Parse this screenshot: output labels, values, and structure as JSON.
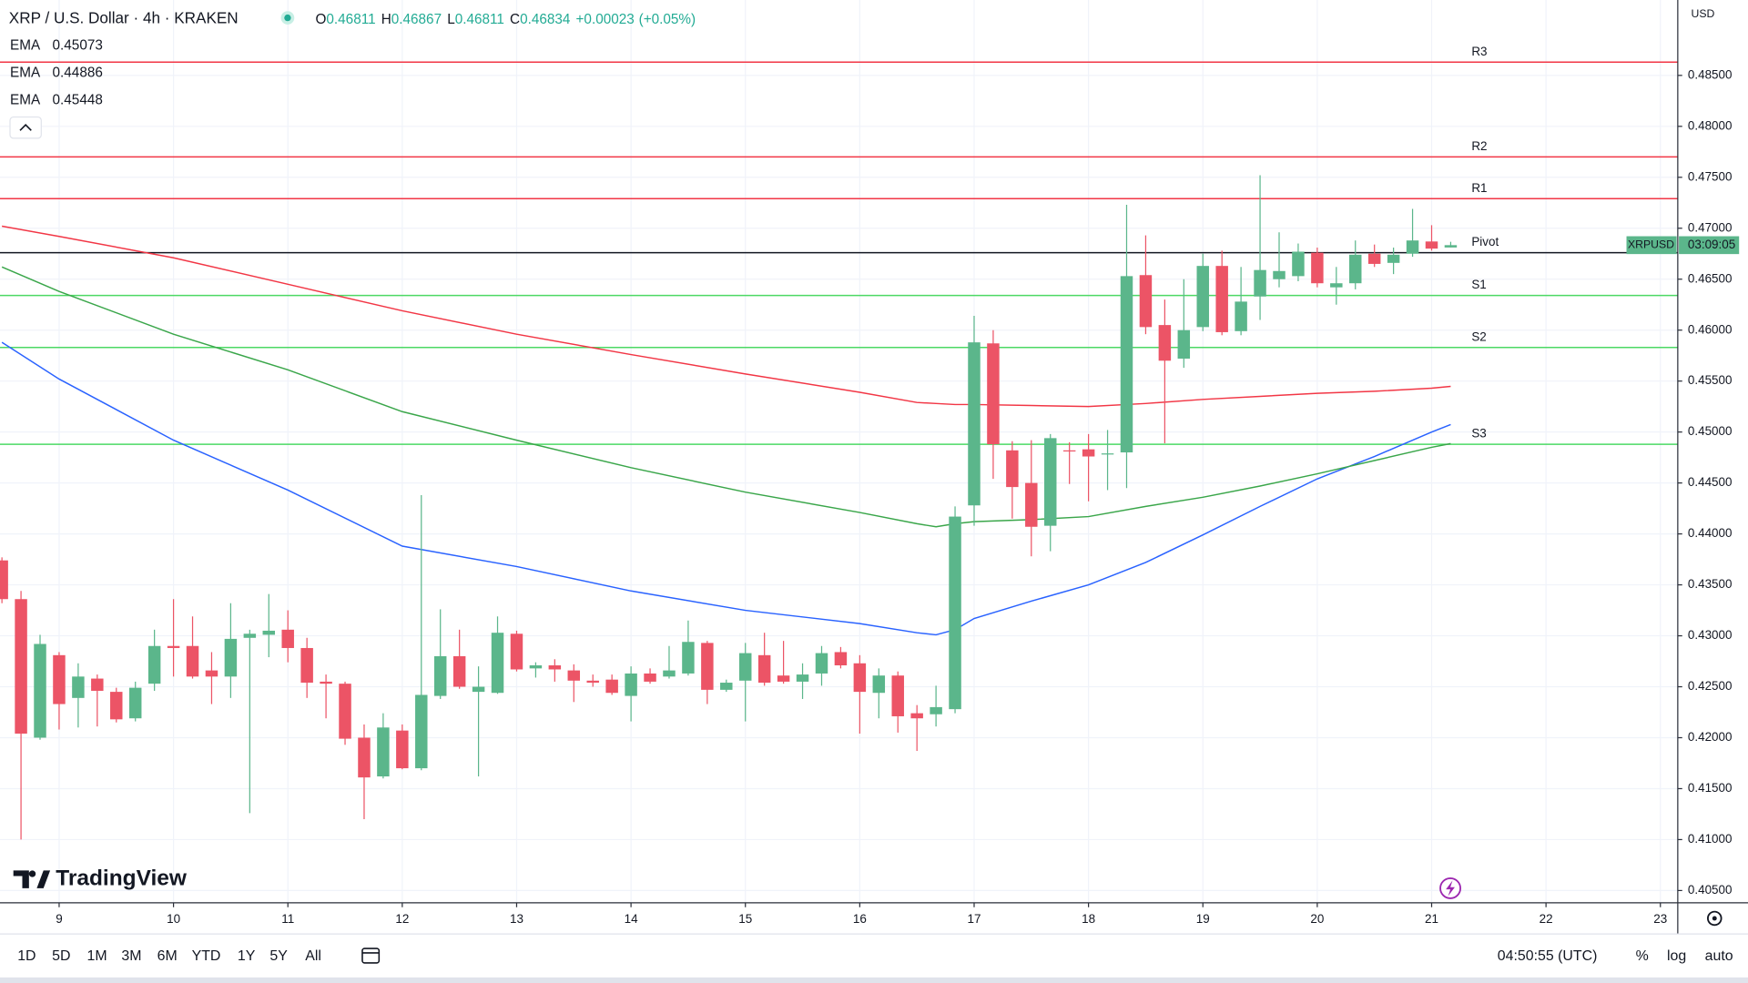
{
  "chart_data": {
    "type": "candlestick",
    "title": "XRP / U.S. Dollar · 4h · KRAKEN",
    "ohlc_labels": [
      "O",
      "H",
      "L",
      "C"
    ],
    "change": "+0.00023",
    "change_pct": "(+0.05%)",
    "currency": "USD",
    "symbol_tag": "XRPUSD",
    "countdown": "03:09:05",
    "up_color": "#5bb68b",
    "down_color": "#ec5466",
    "x": [
      8.5,
      8.6667,
      8.8333,
      9,
      9.1667,
      9.3333,
      9.5,
      9.6667,
      9.8333,
      10,
      10.1667,
      10.3333,
      10.5,
      10.6667,
      10.8333,
      11,
      11.1667,
      11.3333,
      11.5,
      11.6667,
      11.8333,
      12,
      12.1667,
      12.3333,
      12.5,
      12.6667,
      12.8333,
      13,
      13.1667,
      13.3333,
      13.5,
      13.6667,
      13.8333,
      14,
      14.1667,
      14.3333,
      14.5,
      14.6667,
      14.8333,
      15,
      15.1667,
      15.3333,
      15.5,
      15.6667,
      15.8333,
      16,
      16.1667,
      16.3333,
      16.5,
      16.6667,
      16.8333,
      17,
      17.1667,
      17.3333,
      17.5,
      17.6667,
      17.8333,
      18,
      18.1667,
      18.3333,
      18.5,
      18.6667,
      18.8333,
      19,
      19.1667,
      19.3333,
      19.5,
      19.6667,
      19.8333,
      20,
      20.1667,
      20.3333,
      20.5,
      20.6667,
      20.8333,
      21,
      21.1667
    ],
    "open": [
      0.4374,
      0.4336,
      0.42,
      0.4281,
      0.4239,
      0.4258,
      0.4245,
      0.4219,
      0.4253,
      0.429,
      0.429,
      0.4266,
      0.426,
      0.4298,
      0.4301,
      0.4306,
      0.4288,
      0.4255,
      0.4253,
      0.42,
      0.4162,
      0.4207,
      0.417,
      0.4241,
      0.428,
      0.4245,
      0.4244,
      0.4302,
      0.4268,
      0.4271,
      0.4266,
      0.4256,
      0.4257,
      0.4241,
      0.4263,
      0.426,
      0.4263,
      0.4293,
      0.4247,
      0.4256,
      0.4281,
      0.4261,
      0.4255,
      0.4263,
      0.4284,
      0.4273,
      0.4244,
      0.4261,
      0.4224,
      0.4223,
      0.4228,
      0.4428,
      0.4587,
      0.4482,
      0.445,
      0.4408,
      0.4482,
      0.4483,
      0.4478,
      0.448,
      0.4654,
      0.4605,
      0.4572,
      0.4603,
      0.4663,
      0.4599,
      0.4633,
      0.465,
      0.4653,
      0.4676,
      0.4642,
      0.4646,
      0.4675,
      0.4666,
      0.4675,
      0.4687,
      0.46811
    ],
    "high": [
      0.4377,
      0.4344,
      0.4301,
      0.4284,
      0.4273,
      0.4262,
      0.4249,
      0.4255,
      0.4306,
      0.4336,
      0.4319,
      0.4284,
      0.4332,
      0.4306,
      0.4341,
      0.4325,
      0.4298,
      0.4262,
      0.4255,
      0.4213,
      0.4224,
      0.4213,
      0.4438,
      0.4326,
      0.4306,
      0.427,
      0.4319,
      0.4305,
      0.4274,
      0.4277,
      0.4272,
      0.4262,
      0.4262,
      0.427,
      0.4268,
      0.429,
      0.4315,
      0.4295,
      0.4257,
      0.4293,
      0.4303,
      0.4295,
      0.4273,
      0.429,
      0.4289,
      0.4281,
      0.4268,
      0.4265,
      0.4232,
      0.4251,
      0.4427,
      0.4614,
      0.46,
      0.4491,
      0.4492,
      0.4498,
      0.449,
      0.4498,
      0.4502,
      0.4723,
      0.4693,
      0.463,
      0.465,
      0.4675,
      0.4678,
      0.4662,
      0.4752,
      0.4696,
      0.4685,
      0.4681,
      0.4662,
      0.4688,
      0.4684,
      0.4681,
      0.4719,
      0.4703,
      0.46867
    ],
    "low": [
      0.4332,
      0.41,
      0.4198,
      0.4208,
      0.421,
      0.4211,
      0.4215,
      0.4216,
      0.4246,
      0.426,
      0.4258,
      0.4233,
      0.4239,
      0.4126,
      0.4279,
      0.4274,
      0.4239,
      0.4219,
      0.4193,
      0.412,
      0.416,
      0.4169,
      0.4168,
      0.4238,
      0.4248,
      0.4162,
      0.4243,
      0.4265,
      0.4259,
      0.4255,
      0.4235,
      0.425,
      0.4242,
      0.4216,
      0.4253,
      0.4258,
      0.4261,
      0.4233,
      0.4245,
      0.4216,
      0.4251,
      0.4253,
      0.4238,
      0.4251,
      0.4268,
      0.4204,
      0.4219,
      0.4205,
      0.4187,
      0.4211,
      0.4224,
      0.4408,
      0.4454,
      0.4415,
      0.4378,
      0.4383,
      0.4449,
      0.4432,
      0.4443,
      0.4445,
      0.4596,
      0.4489,
      0.4563,
      0.4599,
      0.4595,
      0.4595,
      0.461,
      0.4642,
      0.4648,
      0.4642,
      0.4625,
      0.464,
      0.4662,
      0.4655,
      0.4672,
      0.4678,
      0.46811
    ],
    "close": [
      0.4336,
      0.4204,
      0.4292,
      0.4233,
      0.426,
      0.4246,
      0.4218,
      0.4249,
      0.429,
      0.4288,
      0.426,
      0.426,
      0.4297,
      0.4302,
      0.4305,
      0.4288,
      0.4254,
      0.4253,
      0.4199,
      0.4161,
      0.421,
      0.417,
      0.4242,
      0.428,
      0.425,
      0.425,
      0.4303,
      0.4267,
      0.4271,
      0.4267,
      0.4256,
      0.4254,
      0.4244,
      0.4263,
      0.4255,
      0.4266,
      0.4294,
      0.4247,
      0.4254,
      0.4283,
      0.4254,
      0.4255,
      0.4262,
      0.4283,
      0.4271,
      0.4245,
      0.4261,
      0.4221,
      0.4219,
      0.423,
      0.4417,
      0.4588,
      0.4488,
      0.4446,
      0.4407,
      0.4494,
      0.4481,
      0.4476,
      0.4479,
      0.4653,
      0.4603,
      0.457,
      0.46,
      0.4663,
      0.4598,
      0.4628,
      0.4659,
      0.4658,
      0.4677,
      0.4646,
      0.4646,
      0.4674,
      0.4665,
      0.4674,
      0.4688,
      0.468,
      0.46834
    ],
    "series": [
      {
        "name": "EMA",
        "color": "#2962ff",
        "x": [
          8.5,
          9,
          10,
          11,
          12,
          13,
          14,
          15,
          16,
          16.5,
          16.6667,
          16.8333,
          17,
          17.5,
          18,
          18.5,
          19,
          19.5,
          20,
          20.5,
          21,
          21.1667
        ],
        "values": [
          0.4588,
          0.4552,
          0.4492,
          0.4443,
          0.4388,
          0.4368,
          0.4344,
          0.4325,
          0.4312,
          0.4303,
          0.4301,
          0.4306,
          0.4317,
          0.4334,
          0.435,
          0.4372,
          0.4399,
          0.4427,
          0.4454,
          0.4476,
          0.45,
          0.45073
        ]
      },
      {
        "name": "EMA",
        "color": "#3aa64a",
        "x": [
          8.5,
          9,
          10,
          11,
          12,
          13,
          14,
          15,
          16,
          16.5,
          16.6667,
          16.8333,
          17,
          17.5,
          18,
          18.5,
          19,
          19.5,
          20,
          20.5,
          21,
          21.1667
        ],
        "values": [
          0.4662,
          0.4638,
          0.4596,
          0.4561,
          0.452,
          0.4492,
          0.4465,
          0.4441,
          0.4421,
          0.441,
          0.4407,
          0.441,
          0.4412,
          0.4414,
          0.4417,
          0.4427,
          0.4436,
          0.4447,
          0.4459,
          0.4472,
          0.4485,
          0.44886
        ]
      },
      {
        "name": "EMA",
        "color": "#f23645",
        "x": [
          8.5,
          9,
          10,
          11,
          12,
          13,
          14,
          15,
          16,
          16.5,
          16.6667,
          16.8333,
          17,
          17.5,
          18,
          18.5,
          19,
          19.5,
          20,
          20.5,
          21,
          21.1667
        ],
        "values": [
          0.4702,
          0.4692,
          0.4671,
          0.4645,
          0.4619,
          0.4596,
          0.4576,
          0.4557,
          0.4539,
          0.4529,
          0.4528,
          0.4527,
          0.4527,
          0.4526,
          0.4525,
          0.4528,
          0.4532,
          0.4535,
          0.4538,
          0.454,
          0.4543,
          0.45448
        ]
      }
    ],
    "levels": [
      {
        "name": "R3",
        "value": 0.4863,
        "color": "#f23645"
      },
      {
        "name": "R2",
        "value": 0.477,
        "color": "#f23645"
      },
      {
        "name": "R1",
        "value": 0.4729,
        "color": "#f23645"
      },
      {
        "name": "Pivot",
        "value": 0.4676,
        "color": "#131722"
      },
      {
        "name": "S1",
        "value": 0.4634,
        "color": "#4cd964"
      },
      {
        "name": "S2",
        "value": 0.4583,
        "color": "#4cd964"
      },
      {
        "name": "S3",
        "value": 0.4488,
        "color": "#4cd964"
      }
    ],
    "xlim": [
      8.483,
      23.152
    ],
    "xticks": [
      9,
      10,
      11,
      12,
      13,
      14,
      15,
      16,
      17,
      18,
      19,
      20,
      21,
      22,
      23
    ],
    "ylim": [
      0.4038,
      0.4924
    ],
    "yticks": [
      {
        "value": 0.405,
        "label": "0.40500"
      },
      {
        "value": 0.41,
        "label": "0.41000"
      },
      {
        "value": 0.415,
        "label": "0.41500"
      },
      {
        "value": 0.42,
        "label": "0.42000"
      },
      {
        "value": 0.425,
        "label": "0.42500"
      },
      {
        "value": 0.43,
        "label": "0.43000"
      },
      {
        "value": 0.435,
        "label": "0.43500"
      },
      {
        "value": 0.44,
        "label": "0.44000"
      },
      {
        "value": 0.445,
        "label": "0.44500"
      },
      {
        "value": 0.45,
        "label": "0.45000"
      },
      {
        "value": 0.455,
        "label": "0.45500"
      },
      {
        "value": 0.46,
        "label": "0.46000"
      },
      {
        "value": 0.465,
        "label": "0.46500"
      },
      {
        "value": 0.47,
        "label": "0.47000"
      },
      {
        "value": 0.475,
        "label": "0.47500"
      },
      {
        "value": 0.48,
        "label": "0.48000"
      },
      {
        "value": 0.485,
        "label": "0.48500"
      }
    ],
    "grid": true
  },
  "ui": {
    "brand": "TradingView",
    "ranges": [
      "1D",
      "5D",
      "1M",
      "3M",
      "6M",
      "YTD",
      "1Y",
      "5Y",
      "All"
    ],
    "clock": "04:50:55 (UTC)",
    "percent": "%",
    "log": "log",
    "auto": "auto"
  }
}
